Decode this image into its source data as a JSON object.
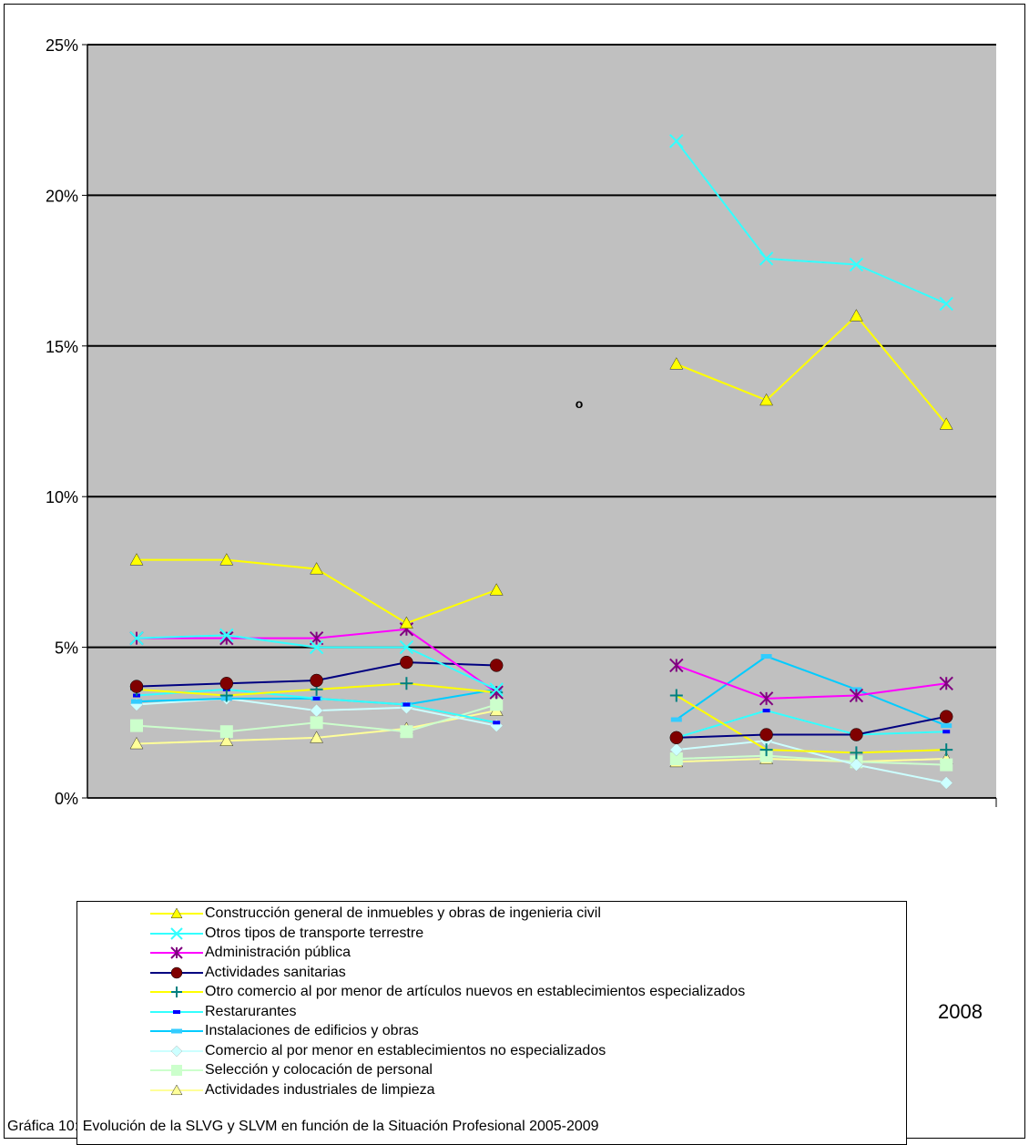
{
  "caption": "Gráfica 10: Evolución de la SLVG y SLVM en función de la Situación Profesional 2005-2009",
  "stray_mark": "o",
  "chart_data": {
    "type": "line",
    "xlabel": "",
    "ylabel": "",
    "x_tick_labels": [
      "2008"
    ],
    "yticks": [
      "0%",
      "5%",
      "10%",
      "15%",
      "20%",
      "25%"
    ],
    "ylim": [
      0,
      25
    ],
    "grid": true,
    "plot_bg": "#c0c0c0",
    "legend_position": "bottom-overlay",
    "group_a_x": [
      1,
      2,
      3,
      4,
      5
    ],
    "group_b_x": [
      7,
      8,
      9,
      10
    ],
    "series": [
      {
        "name": "Construcción general de inmuebles y obras de ingenieria civil",
        "color": "#ffff00",
        "marker": "triangle",
        "a": [
          7.9,
          7.9,
          7.6,
          5.8,
          6.9
        ],
        "b": [
          14.4,
          13.2,
          16.0,
          12.4
        ]
      },
      {
        "name": "Otros tipos de transporte terrestre",
        "color": "#33ffff",
        "marker": "x",
        "a": [
          5.3,
          5.4,
          5.0,
          5.0,
          3.6
        ],
        "b": [
          21.8,
          17.9,
          17.7,
          16.4
        ]
      },
      {
        "name": "Administración pública",
        "color": "#ff00ff",
        "marker": "asterisk",
        "marker_color": "#800080",
        "a": [
          5.3,
          5.3,
          5.3,
          5.6,
          3.5
        ],
        "b": [
          4.4,
          3.3,
          3.4,
          3.8
        ]
      },
      {
        "name": "Actividades sanitarias",
        "color": "#000080",
        "marker": "circle",
        "marker_color": "#800000",
        "a": [
          3.7,
          3.8,
          3.9,
          4.5,
          4.4
        ],
        "b": [
          2.0,
          2.1,
          2.1,
          2.7
        ]
      },
      {
        "name": "Otro comercio al por menor de artículos nuevos en establecimientos especializados",
        "color": "#ffff00",
        "marker": "plus",
        "marker_color": "#008080",
        "a": [
          3.6,
          3.4,
          3.6,
          3.8,
          3.5
        ],
        "b": [
          3.4,
          1.6,
          1.5,
          1.6
        ]
      },
      {
        "name": "Restarurantes",
        "color": "#33ffff",
        "marker": "dash",
        "marker_color": "#0000ff",
        "a": [
          3.4,
          3.6,
          3.3,
          3.1,
          2.5
        ],
        "b": [
          2.0,
          2.9,
          2.1,
          2.2
        ]
      },
      {
        "name": "Instalaciones de edificios y obras",
        "color": "#00ccff",
        "marker": "bar",
        "marker_color": "#33ccff",
        "a": [
          3.2,
          3.3,
          3.3,
          3.1,
          3.6
        ],
        "b": [
          2.6,
          4.7,
          3.6,
          2.4
        ]
      },
      {
        "name": "Comercio al por menor en establecimientos no especializados",
        "color": "#ccffff",
        "marker": "diamond",
        "a": [
          3.1,
          3.3,
          2.9,
          3.0,
          2.4
        ],
        "b": [
          1.6,
          1.9,
          1.1,
          0.5
        ]
      },
      {
        "name": "Selección y colocación de personal",
        "color": "#ccffcc",
        "marker": "square",
        "a": [
          2.4,
          2.2,
          2.5,
          2.2,
          3.1
        ],
        "b": [
          1.3,
          1.4,
          1.2,
          1.1
        ]
      },
      {
        "name": "Actividades industriales de limpieza",
        "color": "#ffff99",
        "marker": "triangle",
        "a": [
          1.8,
          1.9,
          2.0,
          2.3,
          2.9
        ],
        "b": [
          1.2,
          1.3,
          1.2,
          1.3
        ]
      }
    ]
  }
}
